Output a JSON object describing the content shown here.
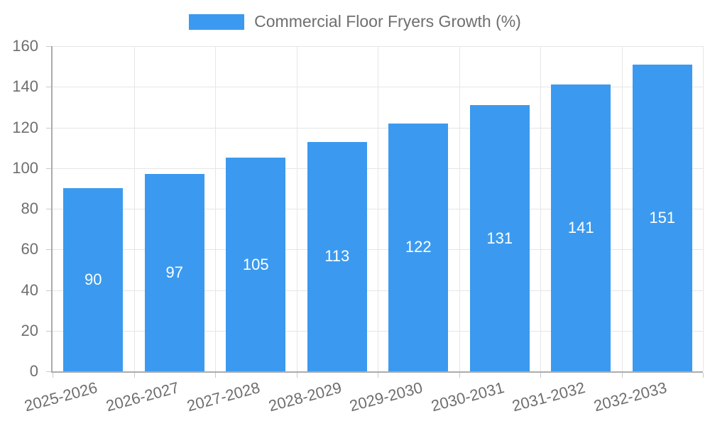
{
  "chart_data": {
    "type": "bar",
    "title": "Commercial Floor Fryers Growth (%)",
    "categories": [
      "2025-2026",
      "2026-2027",
      "2027-2028",
      "2028-2029",
      "2029-2030",
      "2030-2031",
      "2031-2032",
      "2032-2033"
    ],
    "values": [
      90,
      97,
      105,
      113,
      122,
      131,
      141,
      151
    ],
    "xlabel": "",
    "ylabel": "",
    "ylim": [
      0,
      160
    ],
    "yticks": [
      0,
      20,
      40,
      60,
      80,
      100,
      120,
      140,
      160
    ],
    "grid": true,
    "legend_position": "top",
    "x_label_rotation_deg": -15,
    "bar_width_fraction": 0.73,
    "colors": {
      "bar": "#3b9aef",
      "bar_label": "#ffffff",
      "axis_line": "#ababab",
      "grid_line": "#e6e6e6",
      "tick_line": "#c9c9c9",
      "text": "#6e6e6e"
    }
  }
}
